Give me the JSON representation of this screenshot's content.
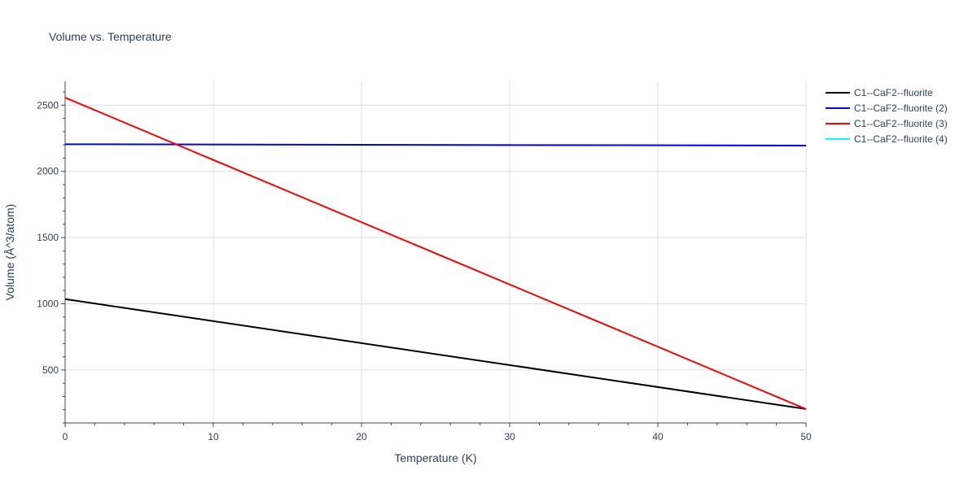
{
  "chart_data": {
    "type": "line",
    "title": "Volume vs. Temperature",
    "xlabel": "Temperature (K)",
    "ylabel": "Volume (Å^3/atom)",
    "xlim": [
      0,
      50
    ],
    "ylim": [
      100,
      2680
    ],
    "x_ticks": [
      0,
      10,
      20,
      30,
      40,
      50
    ],
    "y_ticks": [
      500,
      1000,
      1500,
      2000,
      2500
    ],
    "grid": true,
    "legend_position": "top-right, outside plot",
    "series": [
      {
        "name": "C1--CaF2--fluorite",
        "color": "#000000",
        "x": [
          0,
          50
        ],
        "y": [
          1035,
          205
        ]
      },
      {
        "name": "C1--CaF2--fluorite (2)",
        "color": "#0000ff",
        "x": [
          0,
          50
        ],
        "y": [
          2205,
          2195
        ]
      },
      {
        "name": "C1--CaF2--fluorite (3)",
        "color": "#ff0000",
        "x": [
          0,
          50
        ],
        "y": [
          2557,
          205
        ]
      },
      {
        "name": "C1--CaF2--fluorite (4)",
        "color": "#00ffff",
        "x": [],
        "y": []
      }
    ]
  }
}
